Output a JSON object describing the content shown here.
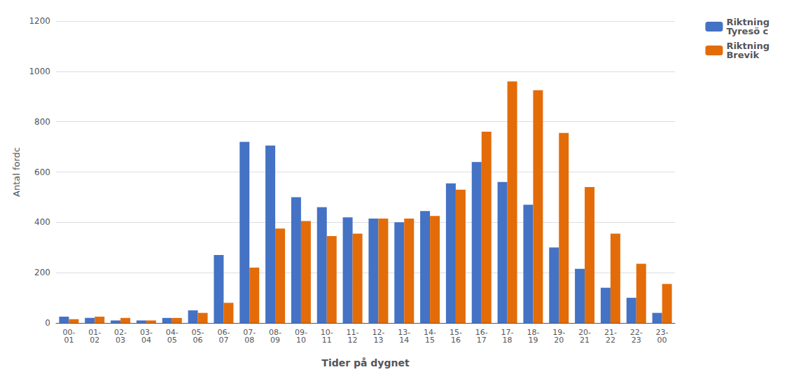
{
  "chart_data": {
    "type": "bar",
    "xlabel": "Tider på dygnet",
    "ylabel": "Antal fordc",
    "categories": [
      "00-\n01",
      "01-\n02",
      "02-\n03",
      "03-\n04",
      "04-\n05",
      "05-\n06",
      "06-\n07",
      "07-\n08",
      "08-\n09",
      "09-\n10",
      "10-\n11",
      "11-\n12",
      "12-\n13",
      "13-\n14",
      "14-\n15",
      "15-\n16",
      "16-\n17",
      "17-\n18",
      "18-\n19",
      "19-\n20",
      "20-\n21",
      "21-\n22",
      "22-\n23",
      "23-\n00"
    ],
    "series": [
      {
        "name": "Riktning\nTyresö c",
        "color": "#4472C4",
        "values": [
          25,
          20,
          10,
          10,
          20,
          50,
          270,
          720,
          705,
          500,
          460,
          420,
          415,
          400,
          445,
          555,
          640,
          560,
          470,
          300,
          215,
          140,
          100,
          40
        ]
      },
      {
        "name": "Riktning\nBrevik",
        "color": "#E36C09",
        "values": [
          15,
          25,
          20,
          10,
          20,
          40,
          80,
          220,
          375,
          405,
          345,
          355,
          415,
          415,
          425,
          530,
          760,
          960,
          925,
          755,
          540,
          355,
          235,
          155
        ]
      }
    ],
    "ylim": [
      0,
      1200
    ],
    "yticks": [
      0,
      200,
      400,
      600,
      800,
      1000,
      1200
    ],
    "grid": true,
    "legend": "right"
  }
}
